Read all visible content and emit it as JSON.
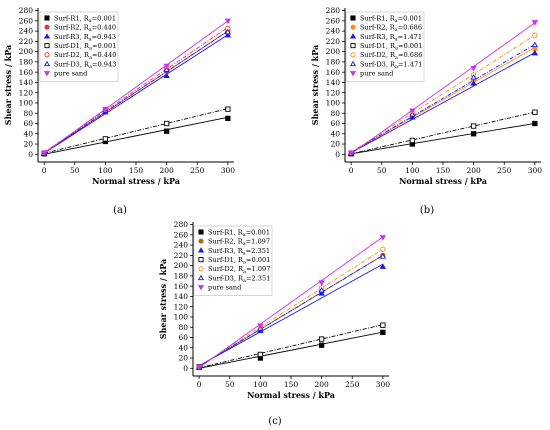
{
  "chart_data": [
    {
      "type": "scatter",
      "panel_label": "(a)",
      "xlabel": "Normal stress / kPa",
      "ylabel": "Shear stress / kPa",
      "xlim": [
        -10,
        310
      ],
      "ylim": [
        -15,
        285
      ],
      "xticks": [
        0,
        50,
        100,
        150,
        200,
        250,
        300
      ],
      "yticks": [
        0,
        20,
        40,
        60,
        80,
        100,
        120,
        140,
        160,
        180,
        200,
        220,
        240,
        260,
        280
      ],
      "legend_position": "top-left",
      "series": [
        {
          "name": "Surf-R1, R",
          "sub": "a",
          "suffix": "=0.001",
          "marker": "square-filled",
          "color": "#000000",
          "line": "solid",
          "x": [
            0,
            100,
            200,
            300
          ],
          "y": [
            1,
            25,
            45,
            70
          ],
          "fit": [
            0,
            0.24
          ]
        },
        {
          "name": "Surf-R2, R",
          "sub": "a",
          "suffix": "=0.440",
          "marker": "circle-filled",
          "color": "#e53935",
          "line": "solid",
          "x": [
            0,
            100,
            200,
            300
          ],
          "y": [
            2,
            85,
            163,
            240
          ],
          "fit": [
            3,
            0.79
          ]
        },
        {
          "name": "Surf-R3, R",
          "sub": "a",
          "suffix": "=0.943",
          "marker": "triangle-filled",
          "color": "#1a1ae6",
          "line": "solid",
          "x": [
            0,
            100,
            200,
            300
          ],
          "y": [
            1,
            82,
            153,
            232
          ],
          "fit": [
            2,
            0.77
          ]
        },
        {
          "name": "Surf-D1, R",
          "sub": "a",
          "suffix": "=0.001",
          "marker": "square-open",
          "color": "#000000",
          "line": "dashdot",
          "x": [
            0,
            100,
            200,
            300
          ],
          "y": [
            2,
            30,
            60,
            88
          ],
          "fit": [
            2,
            0.29
          ]
        },
        {
          "name": "Surf-D2, R",
          "sub": "a",
          "suffix": "=0.440",
          "marker": "circle-open",
          "color": "#e53935",
          "line": "dashdot",
          "x": [
            0,
            100,
            200,
            300
          ],
          "y": [
            3,
            87,
            168,
            245
          ],
          "fit": [
            4,
            0.81
          ]
        },
        {
          "name": "Surf-D3, R",
          "sub": "a",
          "suffix": "=0.943",
          "marker": "triangle-open",
          "color": "#1a1ae6",
          "line": "dashdot",
          "x": [
            0,
            100,
            200,
            300
          ],
          "y": [
            2,
            86,
            165,
            238
          ],
          "fit": [
            3,
            0.79
          ]
        },
        {
          "name": "pure sand",
          "sub": "",
          "suffix": "",
          "marker": "triangle-down-filled",
          "color": "#cc33ee",
          "line": "solid",
          "x": [
            0,
            100,
            200,
            300
          ],
          "y": [
            3,
            88,
            172,
            260
          ],
          "fit": [
            2,
            0.86
          ]
        }
      ]
    },
    {
      "type": "scatter",
      "panel_label": "(b)",
      "xlabel": "Normal stress / kPa",
      "ylabel": "Shear stress / kPa",
      "xlim": [
        -10,
        310
      ],
      "ylim": [
        -15,
        285
      ],
      "xticks": [
        0,
        50,
        100,
        150,
        200,
        250,
        300
      ],
      "yticks": [
        0,
        20,
        40,
        60,
        80,
        100,
        120,
        140,
        160,
        180,
        200,
        220,
        240,
        260,
        280
      ],
      "legend_position": "top-left",
      "series": [
        {
          "name": "Surf-R1, R",
          "sub": "a",
          "suffix": "=0.001",
          "marker": "square-filled",
          "color": "#000000",
          "line": "solid",
          "x": [
            0,
            100,
            200,
            300
          ],
          "y": [
            1,
            20,
            40,
            60
          ],
          "fit": [
            1,
            0.197
          ]
        },
        {
          "name": "Surf-R2, R",
          "sub": "a",
          "suffix": "=0.686",
          "marker": "circle-filled",
          "color": "#ff8c1a",
          "line": "solid",
          "x": [
            0,
            100,
            200,
            300
          ],
          "y": [
            2,
            74,
            145,
            205
          ],
          "fit": [
            4,
            0.68
          ]
        },
        {
          "name": "Surf-R3, R",
          "sub": "a",
          "suffix": "=1.471",
          "marker": "triangle-filled",
          "color": "#1a1ae6",
          "line": "solid",
          "x": [
            0,
            100,
            200,
            300
          ],
          "y": [
            1,
            72,
            138,
            197
          ],
          "fit": [
            3,
            0.65
          ]
        },
        {
          "name": "Surf-D1, R",
          "sub": "a",
          "suffix": "=0.001",
          "marker": "square-open",
          "color": "#000000",
          "line": "dashdot",
          "x": [
            0,
            100,
            200,
            300
          ],
          "y": [
            2,
            27,
            55,
            82
          ],
          "fit": [
            1,
            0.27
          ]
        },
        {
          "name": "Surf-D2, R",
          "sub": "a",
          "suffix": "=0.686",
          "marker": "circle-open",
          "color": "#ff8c1a",
          "line": "dashdot",
          "x": [
            0,
            100,
            200,
            300
          ],
          "y": [
            3,
            80,
            155,
            232
          ],
          "fit": [
            4,
            0.76
          ]
        },
        {
          "name": "Surf-D3, R",
          "sub": "a",
          "suffix": "=1.471",
          "marker": "triangle-open",
          "color": "#1a1ae6",
          "line": "dashdot",
          "x": [
            0,
            100,
            200,
            300
          ],
          "y": [
            2,
            78,
            150,
            213
          ],
          "fit": [
            4,
            0.7
          ]
        },
        {
          "name": "pure sand",
          "sub": "",
          "suffix": "",
          "marker": "triangle-down-filled",
          "color": "#cc33ee",
          "line": "solid",
          "x": [
            0,
            100,
            200,
            300
          ],
          "y": [
            3,
            85,
            168,
            257
          ],
          "fit": [
            1,
            0.85
          ]
        }
      ]
    },
    {
      "type": "scatter",
      "panel_label": "(c)",
      "xlabel": "Normal stress / kPa",
      "ylabel": "Shear stress / kPa",
      "xlim": [
        -10,
        310
      ],
      "ylim": [
        -15,
        285
      ],
      "xticks": [
        0,
        50,
        100,
        150,
        200,
        250,
        300
      ],
      "yticks": [
        0,
        20,
        40,
        60,
        80,
        100,
        120,
        140,
        160,
        180,
        200,
        220,
        240,
        260,
        280
      ],
      "legend_position": "top-left",
      "series": [
        {
          "name": "Surf-R1, R",
          "sub": "a",
          "suffix": "=0.001",
          "marker": "square-filled",
          "color": "#000000",
          "line": "solid",
          "x": [
            0,
            100,
            200,
            300
          ],
          "y": [
            2,
            20,
            45,
            70
          ],
          "fit": [
            0,
            0.235
          ]
        },
        {
          "name": "Surf-R2, R",
          "sub": "a",
          "suffix": "=1.097",
          "marker": "circle-filled",
          "color": "#b5651d",
          "line": "solid",
          "x": [
            0,
            100,
            200,
            300
          ],
          "y": [
            3,
            75,
            150,
            220
          ],
          "fit": [
            4,
            0.72
          ]
        },
        {
          "name": "Surf-R3, R",
          "sub": "a",
          "suffix": "=2.351",
          "marker": "triangle-filled",
          "color": "#1a1ae6",
          "line": "solid",
          "x": [
            0,
            100,
            200,
            300
          ],
          "y": [
            2,
            73,
            146,
            198
          ],
          "fit": [
            5,
            0.66
          ]
        },
        {
          "name": "Surf-D1, R",
          "sub": "a",
          "suffix": "=0.001",
          "marker": "square-open",
          "color": "#000000",
          "line": "dashdot",
          "x": [
            0,
            100,
            200,
            300
          ],
          "y": [
            3,
            27,
            57,
            84
          ],
          "fit": [
            1,
            0.28
          ]
        },
        {
          "name": "Surf-D2, R",
          "sub": "a",
          "suffix": "=1.097",
          "marker": "circle-open",
          "color": "#ff8c1a",
          "line": "dashdot",
          "x": [
            0,
            100,
            200,
            300
          ],
          "y": [
            3,
            80,
            157,
            232
          ],
          "fit": [
            4,
            0.76
          ]
        },
        {
          "name": "Surf-D3, R",
          "sub": "a",
          "suffix": "=2.351",
          "marker": "triangle-open",
          "color": "#1a1ae6",
          "line": "dashdot",
          "x": [
            0,
            100,
            200,
            300
          ],
          "y": [
            2,
            78,
            152,
            218
          ],
          "fit": [
            4,
            0.72
          ]
        },
        {
          "name": "pure sand",
          "sub": "",
          "suffix": "",
          "marker": "triangle-down-filled",
          "color": "#cc33ee",
          "line": "solid",
          "x": [
            0,
            100,
            200,
            300
          ],
          "y": [
            3,
            83,
            167,
            255
          ],
          "fit": [
            1,
            0.85
          ]
        }
      ]
    }
  ]
}
